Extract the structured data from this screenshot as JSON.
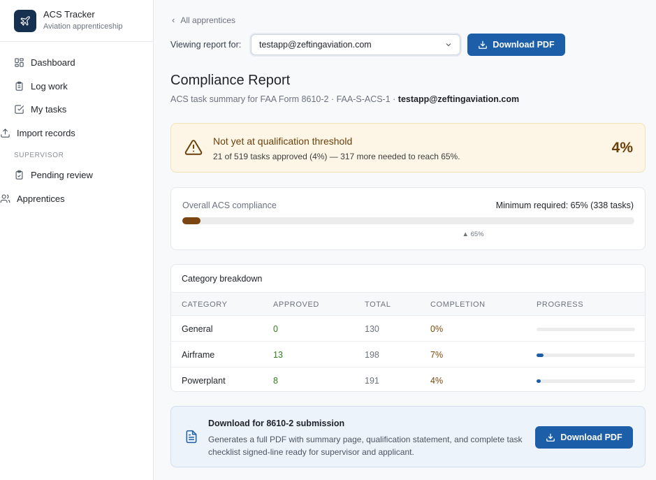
{
  "app": {
    "title": "ACS Tracker",
    "subtitle": "Aviation apprenticeship",
    "logo_icon": "plane-icon"
  },
  "sidebar": {
    "items": [
      {
        "label": "Dashboard",
        "icon": "grid-icon"
      },
      {
        "label": "Log work",
        "icon": "clipboard-icon"
      },
      {
        "label": "My tasks",
        "icon": "check-square-icon"
      },
      {
        "label": "Import records",
        "icon": "upload-icon"
      }
    ],
    "section_label": "SUPERVISOR",
    "supervisor_items": [
      {
        "label": "Pending review",
        "icon": "clipboard-check-icon"
      },
      {
        "label": "Apprentices",
        "icon": "users-icon"
      }
    ]
  },
  "header": {
    "back_label": "All apprentices",
    "viewing_label": "Viewing report for:",
    "selected_apprentice": "testapp@zeftingaviation.com",
    "download_label": "Download PDF"
  },
  "report": {
    "title": "Compliance Report",
    "subtitle_prefix": "ACS task summary for FAA Form 8610-2 · FAA-S-ACS-1 · ",
    "subtitle_email": "testapp@zeftingaviation.com"
  },
  "alert": {
    "title": "Not yet at qualification threshold",
    "detail": "21 of 519 tasks approved (4%) — 317 more needed to reach 65%.",
    "percent": "4%",
    "colors": {
      "background": "#fdf6e6",
      "text": "#6b3f0a"
    }
  },
  "overall": {
    "label": "Overall ACS compliance",
    "minimum": "Minimum required: 65% (338 tasks)",
    "progress": 0.04,
    "threshold": 0.65,
    "threshold_label": "▲ 65%"
  },
  "categories": {
    "title": "Category breakdown",
    "columns": [
      "CATEGORY",
      "APPROVED",
      "TOTAL",
      "COMPLETION",
      "PROGRESS"
    ],
    "rows": [
      {
        "name": "General",
        "approved": "0",
        "total": "130",
        "completion": "0%",
        "progress": 0.0
      },
      {
        "name": "Airframe",
        "approved": "13",
        "total": "198",
        "completion": "7%",
        "progress": 0.07
      },
      {
        "name": "Powerplant",
        "approved": "8",
        "total": "191",
        "completion": "4%",
        "progress": 0.04
      }
    ]
  },
  "download": {
    "title": "Download for 8610-2 submission",
    "text": "Generates a full PDF with summary page, qualification statement, and complete task checklist signed-line ready for supervisor and applicant.",
    "button_label": "Download PDF"
  },
  "colors": {
    "primary": "#1d5ea8",
    "warning_fill": "#7a4510",
    "approved_green": "#2f7d1c"
  }
}
